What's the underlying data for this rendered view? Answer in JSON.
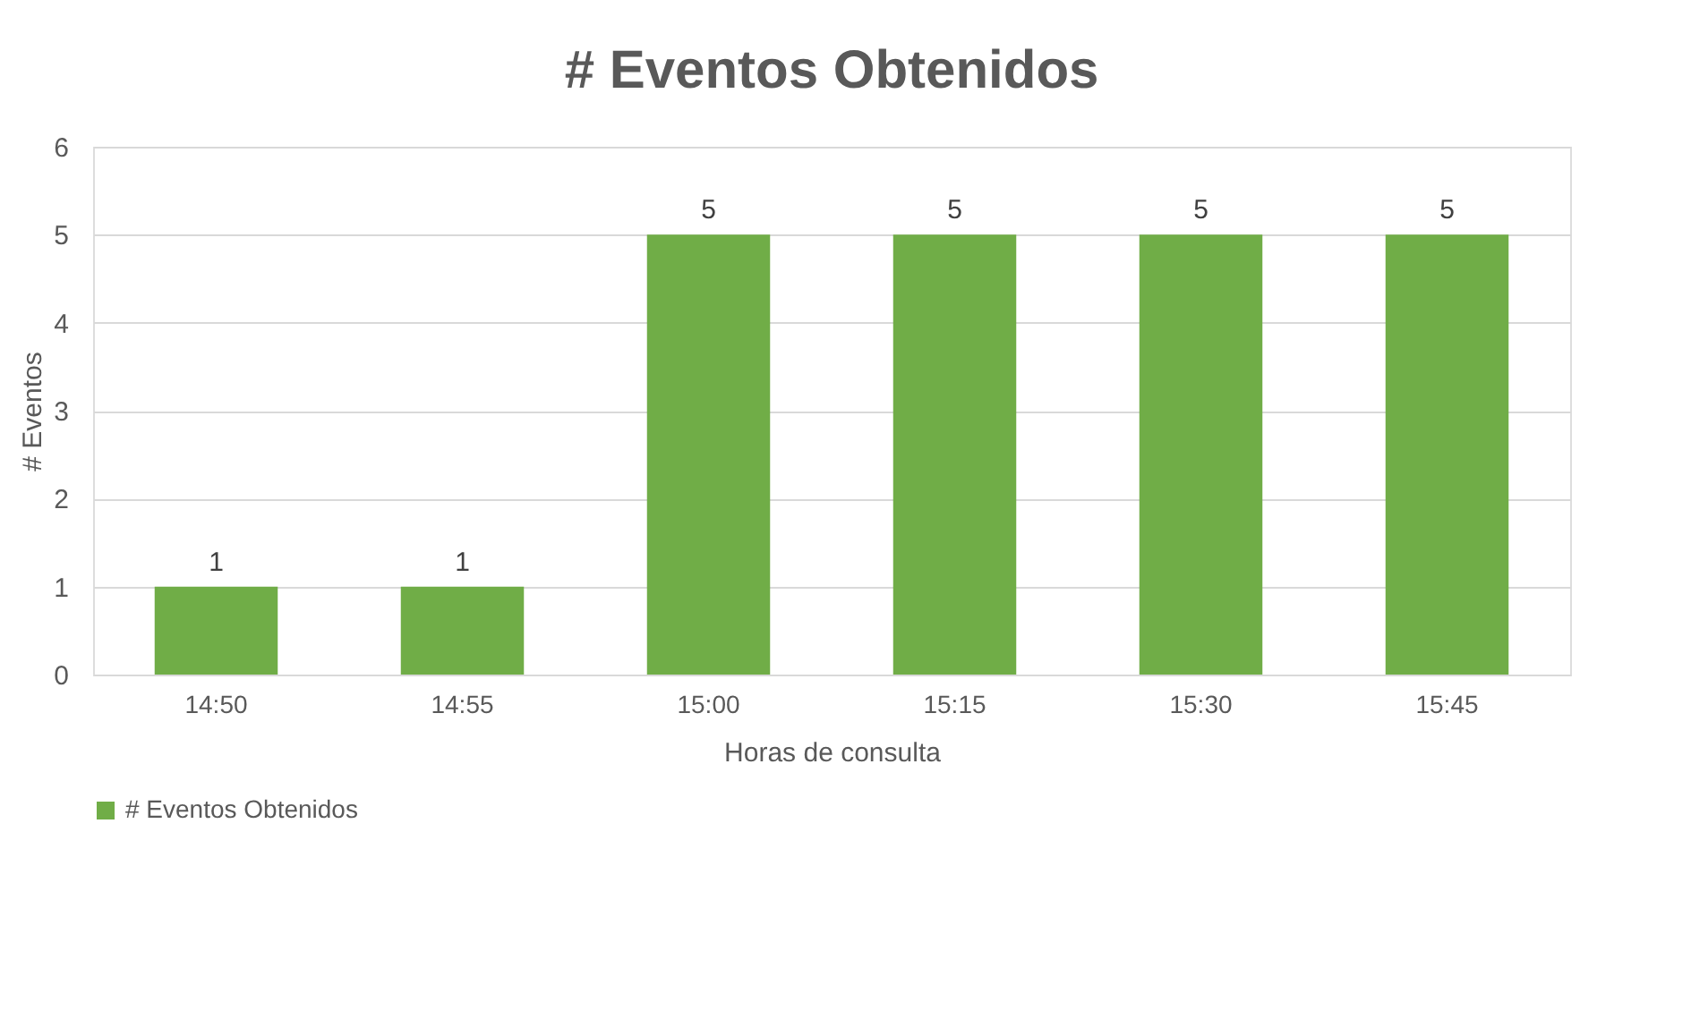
{
  "chart_data": {
    "type": "bar",
    "title": "# Eventos Obtenidos",
    "xlabel": "Horas de consulta",
    "ylabel": "# Eventos",
    "categories": [
      "14:50",
      "14:55",
      "15:00",
      "15:15",
      "15:30",
      "15:45"
    ],
    "series": [
      {
        "name": "# Eventos Obtenidos",
        "color": "#70ad47",
        "values": [
          1,
          1,
          5,
          5,
          5,
          5
        ]
      }
    ],
    "ylim": [
      0,
      6
    ],
    "yticks": [
      0,
      1,
      2,
      3,
      4,
      5,
      6
    ],
    "grid": "y",
    "legend": "bottom",
    "data_labels": true
  }
}
